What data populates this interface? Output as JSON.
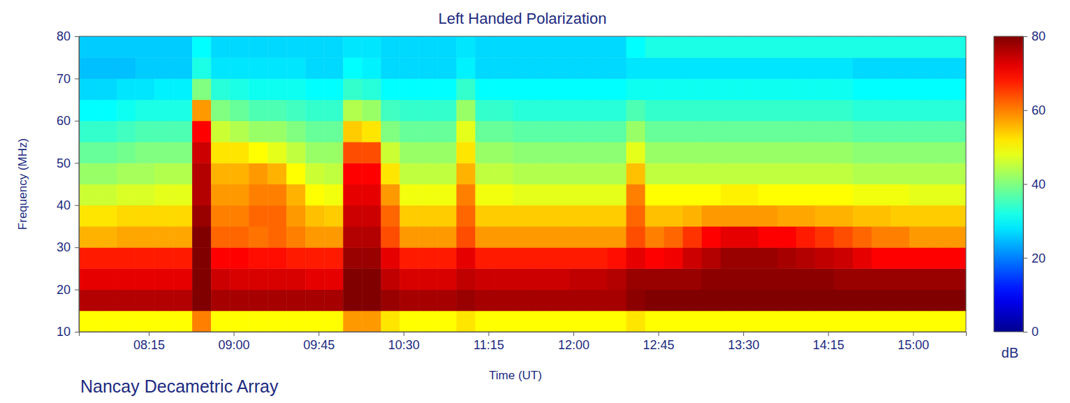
{
  "chart_data": {
    "type": "heatmap",
    "title": "Left Handed Polarization",
    "x_label": "Time (UT)",
    "y_label": "Frequency (MHz)",
    "colorbar_label": "dB",
    "annotations": [
      "Nancay Decametric Array"
    ],
    "xlim": [
      458,
      928
    ],
    "xticks": [
      {
        "value": 495,
        "label": "08:15"
      },
      {
        "value": 540,
        "label": "09:00"
      },
      {
        "value": 585,
        "label": "09:45"
      },
      {
        "value": 630,
        "label": "10:30"
      },
      {
        "value": 675,
        "label": "11:15"
      },
      {
        "value": 720,
        "label": "12:00"
      },
      {
        "value": 765,
        "label": "12:45"
      },
      {
        "value": 810,
        "label": "13:30"
      },
      {
        "value": 855,
        "label": "14:15"
      },
      {
        "value": 900,
        "label": "15:00"
      }
    ],
    "ylim": [
      10,
      80
    ],
    "yticks": [
      10,
      20,
      30,
      40,
      50,
      60,
      70,
      80
    ],
    "zlim": [
      0,
      80
    ],
    "zticks": [
      0,
      20,
      40,
      60,
      80
    ],
    "x": [
      463,
      473,
      483,
      493,
      503,
      513,
      523,
      533,
      543,
      553,
      563,
      573,
      583,
      593,
      603,
      613,
      623,
      633,
      643,
      653,
      663,
      673,
      683,
      693,
      703,
      713,
      723,
      733,
      743,
      753,
      763,
      773,
      783,
      793,
      803,
      813,
      823,
      833,
      843,
      853,
      863,
      873,
      883,
      893,
      903,
      913,
      923
    ],
    "y": [
      12.5,
      17.5,
      22.5,
      27.5,
      32.5,
      37.5,
      42.5,
      47.5,
      52.5,
      57.5,
      62.5,
      67.5,
      72.5,
      77.5
    ],
    "z": [
      [
        50,
        50,
        50,
        50,
        50,
        50,
        60,
        50,
        50,
        50,
        50,
        50,
        50,
        50,
        58,
        58,
        52,
        50,
        50,
        50,
        52,
        50,
        50,
        50,
        50,
        50,
        50,
        50,
        50,
        52,
        50,
        50,
        50,
        50,
        50,
        50,
        50,
        50,
        50,
        50,
        50,
        50,
        50,
        50,
        50,
        50,
        50
      ],
      [
        76,
        76,
        76,
        76,
        76,
        76,
        80,
        77,
        77,
        77,
        77,
        77,
        77,
        77,
        80,
        80,
        78,
        77,
        77,
        77,
        78,
        77,
        77,
        77,
        77,
        77,
        77,
        77,
        77,
        79,
        80,
        80,
        80,
        80,
        80,
        80,
        80,
        80,
        80,
        80,
        80,
        80,
        80,
        80,
        80,
        80,
        80
      ],
      [
        72,
        72,
        72,
        72,
        72,
        72,
        80,
        74,
        73,
        73,
        73,
        73,
        72,
        72,
        80,
        80,
        75,
        73,
        73,
        73,
        75,
        74,
        74,
        74,
        74,
        74,
        75,
        75,
        76,
        78,
        78,
        78,
        78,
        79,
        79,
        79,
        79,
        79,
        79,
        79,
        78,
        78,
        78,
        78,
        78,
        78,
        78
      ],
      [
        68,
        68,
        68,
        68,
        68,
        68,
        80,
        70,
        70,
        69,
        69,
        68,
        68,
        68,
        78,
        78,
        72,
        68,
        68,
        68,
        72,
        68,
        68,
        68,
        68,
        68,
        68,
        68,
        69,
        72,
        70,
        71,
        74,
        76,
        78,
        78,
        78,
        77,
        76,
        75,
        74,
        72,
        70,
        70,
        70,
        70,
        70
      ],
      [
        56,
        56,
        57,
        57,
        57,
        57,
        80,
        62,
        62,
        61,
        62,
        60,
        58,
        58,
        76,
        76,
        64,
        58,
        58,
        58,
        64,
        58,
        58,
        58,
        58,
        58,
        58,
        58,
        58,
        64,
        60,
        62,
        66,
        70,
        72,
        72,
        70,
        70,
        68,
        66,
        64,
        62,
        60,
        60,
        58,
        58,
        58
      ],
      [
        52,
        52,
        53,
        53,
        53,
        53,
        78,
        60,
        60,
        62,
        62,
        58,
        55,
        54,
        74,
        74,
        62,
        54,
        54,
        54,
        62,
        54,
        54,
        54,
        54,
        54,
        54,
        54,
        54,
        62,
        55,
        55,
        56,
        58,
        58,
        58,
        58,
        57,
        57,
        56,
        56,
        55,
        55,
        54,
        54,
        54,
        54
      ],
      [
        46,
        46,
        47,
        47,
        48,
        48,
        76,
        58,
        58,
        60,
        60,
        56,
        50,
        49,
        72,
        72,
        58,
        49,
        49,
        49,
        60,
        49,
        49,
        48,
        48,
        48,
        48,
        48,
        48,
        60,
        50,
        50,
        50,
        50,
        51,
        51,
        50,
        50,
        50,
        50,
        50,
        49,
        49,
        49,
        48,
        48,
        48
      ],
      [
        42,
        42,
        43,
        43,
        44,
        44,
        76,
        56,
        56,
        58,
        56,
        50,
        46,
        45,
        70,
        70,
        52,
        45,
        45,
        45,
        56,
        45,
        45,
        44,
        44,
        44,
        44,
        44,
        44,
        55,
        45,
        45,
        45,
        45,
        45,
        45,
        45,
        45,
        45,
        45,
        45,
        44,
        44,
        44,
        44,
        44,
        44
      ],
      [
        38,
        38,
        39,
        40,
        40,
        40,
        74,
        52,
        52,
        50,
        48,
        45,
        42,
        42,
        64,
        64,
        46,
        42,
        42,
        42,
        52,
        42,
        42,
        41,
        41,
        41,
        41,
        41,
        41,
        48,
        42,
        42,
        42,
        42,
        42,
        42,
        42,
        42,
        42,
        42,
        42,
        41,
        41,
        41,
        41,
        41,
        41
      ],
      [
        34,
        34,
        35,
        36,
        36,
        36,
        70,
        46,
        44,
        42,
        42,
        40,
        38,
        38,
        54,
        52,
        40,
        38,
        38,
        38,
        48,
        38,
        38,
        37,
        37,
        37,
        37,
        37,
        37,
        42,
        38,
        38,
        38,
        38,
        38,
        38,
        38,
        38,
        38,
        38,
        38,
        37,
        37,
        37,
        37,
        37,
        37
      ],
      [
        30,
        30,
        31,
        32,
        32,
        32,
        58,
        40,
        38,
        36,
        36,
        35,
        34,
        34,
        44,
        42,
        35,
        34,
        34,
        34,
        42,
        34,
        34,
        33,
        33,
        33,
        33,
        33,
        33,
        36,
        34,
        34,
        34,
        34,
        34,
        34,
        34,
        34,
        34,
        34,
        34,
        33,
        33,
        33,
        33,
        33,
        33
      ],
      [
        27,
        27,
        28,
        28,
        29,
        29,
        40,
        33,
        32,
        31,
        31,
        31,
        30,
        30,
        34,
        33,
        30,
        30,
        30,
        30,
        34,
        30,
        30,
        30,
        30,
        30,
        30,
        30,
        30,
        31,
        31,
        31,
        31,
        31,
        31,
        31,
        31,
        31,
        31,
        31,
        31,
        30,
        30,
        30,
        30,
        30,
        30
      ],
      [
        25,
        25,
        25,
        26,
        26,
        26,
        32,
        28,
        28,
        28,
        28,
        28,
        27,
        27,
        30,
        29,
        27,
        27,
        27,
        27,
        29,
        27,
        27,
        27,
        27,
        27,
        27,
        27,
        27,
        28,
        28,
        28,
        28,
        28,
        28,
        28,
        28,
        28,
        28,
        28,
        28,
        27,
        27,
        27,
        27,
        27,
        27
      ],
      [
        26,
        26,
        26,
        26,
        26,
        26,
        30,
        27,
        27,
        27,
        27,
        27,
        27,
        27,
        28,
        28,
        27,
        27,
        27,
        27,
        28,
        27,
        27,
        27,
        27,
        27,
        27,
        27,
        27,
        30,
        32,
        32,
        32,
        32,
        32,
        32,
        32,
        32,
        32,
        32,
        32,
        32,
        32,
        32,
        32,
        32,
        32
      ]
    ]
  }
}
